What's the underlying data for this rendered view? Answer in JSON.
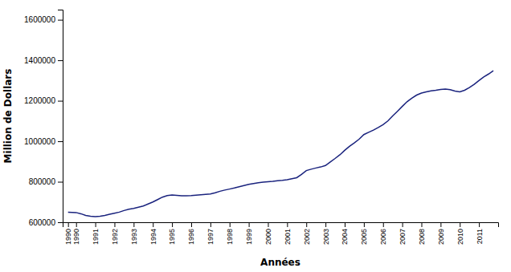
{
  "chart_data": {
    "type": "line",
    "xlabel": "Années",
    "ylabel": "Million de Dollars",
    "x": [
      1989.58,
      1990.0,
      1990.25,
      1990.5,
      1990.75,
      1991.0,
      1991.25,
      1991.5,
      1991.75,
      1992.0,
      1992.25,
      1992.5,
      1992.75,
      1993.0,
      1993.25,
      1993.5,
      1993.75,
      1994.0,
      1994.25,
      1994.5,
      1994.75,
      1995.0,
      1995.25,
      1995.5,
      1995.75,
      1996.0,
      1996.25,
      1996.5,
      1996.75,
      1997.0,
      1997.25,
      1997.5,
      1997.75,
      1998.0,
      1998.25,
      1998.5,
      1998.75,
      1999.0,
      1999.25,
      1999.5,
      1999.75,
      2000.0,
      2000.25,
      2000.5,
      2000.75,
      2001.0,
      2001.25,
      2001.5,
      2001.75,
      2002.0,
      2002.25,
      2002.5,
      2002.75,
      2003.0,
      2003.25,
      2003.5,
      2003.75,
      2004.0,
      2004.25,
      2004.5,
      2004.75,
      2005.0,
      2005.25,
      2005.5,
      2005.75,
      2006.0,
      2006.25,
      2006.5,
      2006.75,
      2007.0,
      2007.25,
      2007.5,
      2007.75,
      2008.0,
      2008.25,
      2008.5,
      2008.75,
      2009.0,
      2009.25,
      2009.5,
      2009.75,
      2010.0,
      2010.25,
      2010.5,
      2010.75,
      2011.0,
      2011.25,
      2011.5,
      2011.75
    ],
    "values": [
      650000,
      648000,
      642000,
      634000,
      630000,
      628000,
      630000,
      634000,
      640000,
      645000,
      650000,
      658000,
      664000,
      668000,
      674000,
      680000,
      690000,
      700000,
      712000,
      724000,
      732000,
      735000,
      733000,
      731000,
      731000,
      732000,
      734000,
      736000,
      738000,
      740000,
      746000,
      753000,
      759000,
      764000,
      769000,
      775000,
      781000,
      787000,
      791000,
      795000,
      798000,
      800000,
      802000,
      805000,
      807000,
      810000,
      815000,
      820000,
      836000,
      855000,
      862000,
      868000,
      873000,
      880000,
      898000,
      915000,
      933000,
      955000,
      975000,
      992000,
      1010000,
      1033000,
      1044000,
      1055000,
      1068000,
      1082000,
      1100000,
      1125000,
      1148000,
      1172000,
      1195000,
      1213000,
      1228000,
      1238000,
      1244000,
      1249000,
      1252000,
      1256000,
      1258000,
      1255000,
      1248000,
      1244000,
      1252000,
      1265000,
      1281000,
      1300000,
      1318000,
      1332000,
      1348000
    ],
    "color": "#1a237e",
    "xlim": [
      1989.3,
      2012.0
    ],
    "ylim": [
      600000,
      1650000
    ],
    "xticks": [
      {
        "value": 1989.58,
        "label": "1990"
      },
      1990,
      1991,
      1992,
      1993,
      1994,
      1995,
      1996,
      1997,
      1998,
      1999,
      2000,
      2001,
      2002,
      2003,
      2004,
      2005,
      2006,
      2007,
      2008,
      2009,
      2010,
      2011
    ],
    "yticks": [
      600000,
      800000,
      1000000,
      1200000,
      1400000,
      1600000
    ],
    "grid": false
  }
}
